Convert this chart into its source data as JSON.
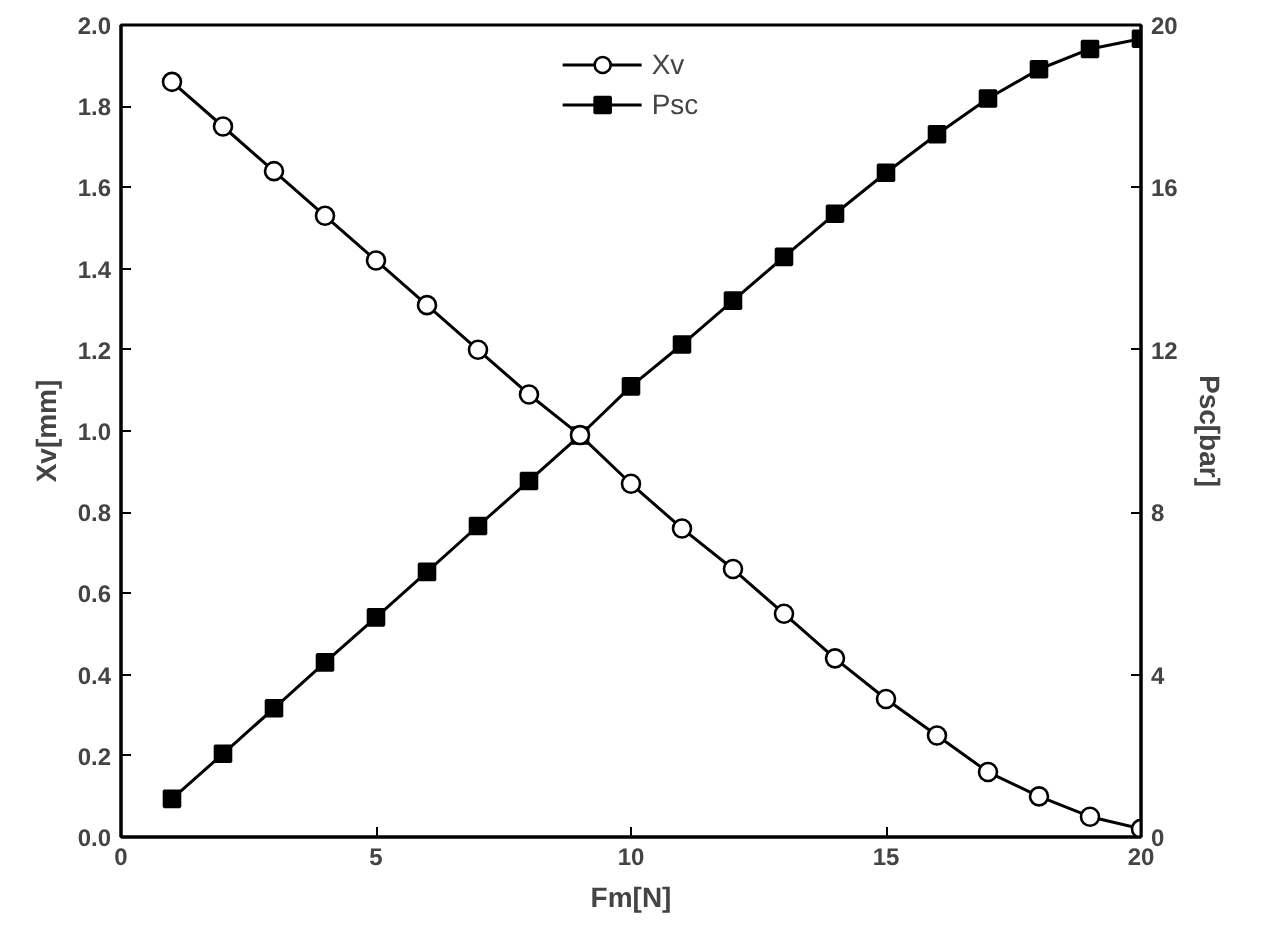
{
  "chart_data": {
    "type": "line",
    "xlabel": "Fm[N]",
    "ylabel": "Xv[mm]",
    "y2label": "Psc[bar]",
    "x": [
      1,
      2,
      3,
      4,
      5,
      6,
      7,
      8,
      9,
      10,
      11,
      12,
      13,
      14,
      15,
      16,
      17,
      18,
      19,
      20
    ],
    "series": [
      {
        "name": "Xv",
        "color": "#000000",
        "marker": "circle",
        "values": [
          1.86,
          1.75,
          1.64,
          1.53,
          1.42,
          1.31,
          1.2,
          1.09,
          0.99,
          0.87,
          0.76,
          0.66,
          0.55,
          0.44,
          0.34,
          0.25,
          0.16,
          0.1,
          0.05,
          0.02
        ]
      },
      {
        "name": "Psc",
        "color": "#000000",
        "marker": "square",
        "axis": "y2",
        "values": [
          0.94,
          2.05,
          3.17,
          4.3,
          5.41,
          6.53,
          7.66,
          8.77,
          9.89,
          11.1,
          12.13,
          13.21,
          14.29,
          15.35,
          16.36,
          17.31,
          18.19,
          18.91,
          19.41,
          19.66
        ]
      }
    ],
    "xlim": [
      0,
      20
    ],
    "xticks": [
      0,
      5,
      10,
      15,
      20
    ],
    "ylim": [
      0,
      2
    ],
    "yticks": [
      {
        "value": 0,
        "label": "0.0"
      },
      {
        "value": 0.2,
        "label": "0.2"
      },
      {
        "value": 0.4,
        "label": "0.4"
      },
      {
        "value": 0.6,
        "label": "0.6"
      },
      {
        "value": 0.8,
        "label": "0.8"
      },
      {
        "value": 1.0,
        "label": "1.0"
      },
      {
        "value": 1.2,
        "label": "1.2"
      },
      {
        "value": 1.4,
        "label": "1.4"
      },
      {
        "value": 1.6,
        "label": "1.6"
      },
      {
        "value": 1.8,
        "label": "1.8"
      },
      {
        "value": 2.0,
        "label": "2.0"
      }
    ],
    "y2lim": [
      0,
      20
    ],
    "y2ticks": [
      0,
      4,
      8,
      12,
      16,
      20
    ],
    "grid": false,
    "legend": "top",
    "line_style": "solid"
  }
}
